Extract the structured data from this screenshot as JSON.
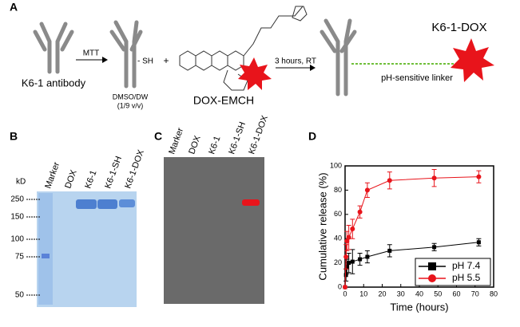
{
  "panel_labels": [
    "A",
    "B",
    "C",
    "D"
  ],
  "scheme": {
    "antibody_label": "K6-1 antibody",
    "step1": "MTT",
    "sh": "- SH",
    "plus": "+",
    "solvent": "DMSO/DW",
    "ratio": "(1/9 v/v)",
    "drug": "DOX-EMCH",
    "step2": "3 hours, RT",
    "product": "K6-1-DOX",
    "linker": "pH-sensitive linker"
  },
  "gel_b": {
    "unit": "kD",
    "lanes": [
      "Marker",
      "DOX",
      "K6-1",
      "K6-1-SH",
      "K6-1-DOX"
    ],
    "markers": [
      250,
      150,
      100,
      75,
      50
    ]
  },
  "gel_c": {
    "lanes": [
      "Marker",
      "DOX",
      "K6-1",
      "K6-1-SH",
      "K6-1-DOX"
    ]
  },
  "chart_data": {
    "type": "line",
    "xlabel": "Time (hours)",
    "ylabel": "Cumulative release (%)",
    "x": [
      0,
      0.5,
      1,
      2,
      4,
      8,
      12,
      24,
      48,
      72
    ],
    "series": [
      {
        "name": "pH 7.4",
        "color": "#000000",
        "marker": "square",
        "values": [
          0,
          10,
          17,
          20,
          21,
          23,
          25,
          30,
          33,
          37
        ],
        "errors": [
          0,
          5,
          6,
          8,
          10,
          5,
          5,
          5,
          3,
          3
        ]
      },
      {
        "name": "pH 5.5",
        "color": "#e8141b",
        "marker": "circle",
        "values": [
          0,
          25,
          38,
          41,
          48,
          62,
          80,
          88,
          90,
          91
        ],
        "errors": [
          0,
          10,
          8,
          10,
          8,
          5,
          6,
          7,
          7,
          5
        ]
      }
    ],
    "xlim": [
      0,
      80
    ],
    "xticks": [
      0,
      10,
      20,
      30,
      40,
      50,
      60,
      70,
      80
    ],
    "ylim": [
      0,
      100
    ],
    "yticks": [
      0,
      20,
      40,
      60,
      80,
      100
    ],
    "legend": "lower right"
  }
}
